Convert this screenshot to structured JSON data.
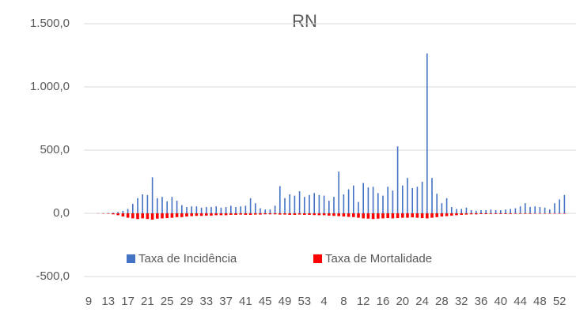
{
  "chart_data": {
    "type": "bar",
    "title": "RN",
    "categories": [
      "9",
      null,
      null,
      null,
      "13",
      null,
      null,
      null,
      "17",
      null,
      null,
      null,
      "21",
      null,
      null,
      null,
      "25",
      null,
      null,
      null,
      "29",
      null,
      null,
      null,
      "33",
      null,
      null,
      null,
      "37",
      null,
      null,
      null,
      "41",
      null,
      null,
      null,
      "45",
      null,
      null,
      null,
      "49",
      null,
      null,
      null,
      "53",
      null,
      null,
      null,
      "4",
      null,
      null,
      null,
      "8",
      null,
      null,
      null,
      "12",
      null,
      null,
      null,
      "16",
      null,
      null,
      null,
      "20",
      null,
      null,
      null,
      "24",
      null,
      null,
      null,
      "28",
      null,
      null,
      null,
      "32",
      null,
      null,
      null,
      "36",
      null,
      null,
      null,
      "40",
      null,
      null,
      null,
      "44",
      null,
      null,
      null,
      "48",
      null,
      null,
      null,
      "52",
      null
    ],
    "series": [
      {
        "name": "Taxa de Incidência",
        "color": "#4472c4",
        "values": [
          0,
          0,
          1,
          2,
          3,
          5,
          10,
          20,
          35,
          75,
          120,
          150,
          145,
          285,
          120,
          130,
          95,
          130,
          100,
          65,
          50,
          55,
          55,
          45,
          50,
          50,
          55,
          45,
          50,
          60,
          50,
          55,
          60,
          120,
          80,
          40,
          30,
          30,
          60,
          215,
          120,
          150,
          140,
          175,
          130,
          145,
          160,
          145,
          140,
          100,
          130,
          330,
          150,
          190,
          220,
          90,
          240,
          205,
          210,
          160,
          140,
          210,
          180,
          530,
          220,
          280,
          200,
          210,
          250,
          1265,
          280,
          155,
          80,
          120,
          50,
          35,
          35,
          45,
          25,
          20,
          25,
          25,
          30,
          25,
          25,
          30,
          35,
          40,
          55,
          80,
          50,
          55,
          50,
          45,
          30,
          80,
          110,
          145
        ]
      },
      {
        "name": "Taxa de Mortalidade",
        "color": "#ff0000",
        "values": [
          0,
          0,
          -1,
          -2,
          -3,
          -8,
          -15,
          -25,
          -35,
          -40,
          -45,
          -40,
          -45,
          -50,
          -42,
          -40,
          -38,
          -35,
          -30,
          -30,
          -25,
          -22,
          -20,
          -20,
          -18,
          -18,
          -15,
          -15,
          -15,
          -12,
          -12,
          -10,
          -12,
          -12,
          -10,
          -10,
          -8,
          -8,
          -8,
          -10,
          -10,
          -12,
          -12,
          -10,
          -12,
          -12,
          -14,
          -15,
          -15,
          -18,
          -20,
          -22,
          -25,
          -28,
          -30,
          -35,
          -40,
          -42,
          -45,
          -42,
          -40,
          -38,
          -40,
          -38,
          -35,
          -35,
          -32,
          -35,
          -38,
          -40,
          -35,
          -30,
          -25,
          -22,
          -18,
          -15,
          -12,
          -10,
          -8,
          -8,
          -6,
          -6,
          -5,
          -5,
          -5,
          -5,
          -5,
          -4,
          -4,
          -4,
          -4,
          -3,
          -3,
          -3,
          -3,
          -3,
          -3,
          -3
        ]
      }
    ],
    "ylim": [
      -500,
      1500
    ],
    "yticks": [
      {
        "value": -500,
        "label": "-500,0"
      },
      {
        "value": 0,
        "label": "0,0"
      },
      {
        "value": 500,
        "label": "500,0"
      },
      {
        "value": 1000,
        "label": "1.000,0"
      },
      {
        "value": 1500,
        "label": "1.500,0"
      }
    ],
    "grid": true,
    "legend": "bottom"
  }
}
